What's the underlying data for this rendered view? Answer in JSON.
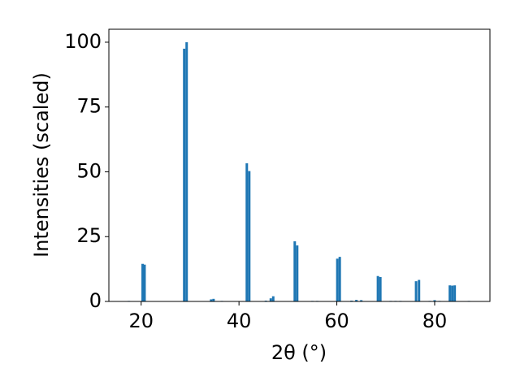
{
  "chart_data": {
    "type": "bar",
    "x_label": "2θ (°)",
    "y_label": "Intensities (scaled)",
    "x": [
      17.5,
      20.3,
      20.7,
      28.8,
      29.3,
      34.3,
      34.8,
      36.5,
      41.6,
      42.1,
      45.5,
      46.5,
      47.0,
      51.4,
      51.9,
      55.0,
      56.0,
      60.1,
      60.6,
      63.0,
      64.0,
      65.0,
      68.4,
      68.9,
      71.0,
      72.0,
      73.0,
      76.2,
      76.8,
      79.0,
      80.0,
      81.0,
      83.1,
      83.6,
      84.1,
      87.0
    ],
    "values": [
      0.2,
      14.5,
      14.2,
      97.5,
      100,
      0.8,
      1.0,
      0.2,
      53.3,
      50.3,
      0.3,
      1.2,
      2.0,
      23.2,
      21.6,
      0.2,
      0.2,
      16.5,
      17.2,
      0.3,
      0.6,
      0.5,
      9.8,
      9.4,
      0.2,
      0.2,
      0.2,
      7.8,
      8.3,
      0.2,
      0.5,
      0.2,
      6.2,
      6.1,
      6.2,
      0.2
    ],
    "color": "#1f77b4",
    "xlim": [
      13.4,
      91.3
    ],
    "xticks": [
      20,
      40,
      60,
      80
    ],
    "ylim": [
      0,
      105
    ],
    "yticks": [
      0,
      25,
      50,
      75,
      100
    ],
    "grid": false
  }
}
